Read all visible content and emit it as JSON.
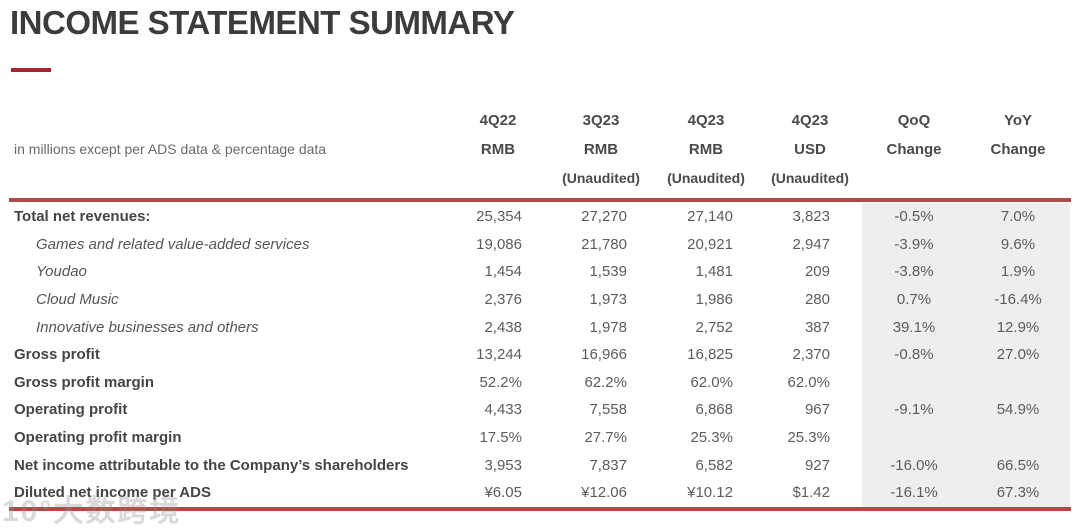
{
  "page": {
    "title": "INCOME STATEMENT SUMMARY"
  },
  "colors": {
    "title_underline": "#A8232E",
    "table_border": "#AF4A44",
    "band_background": "#EEEEEE"
  },
  "table": {
    "note": "in millions except per ADS data & percentage data",
    "columns": [
      {
        "period": "4Q22",
        "unit": "RMB",
        "audit": ""
      },
      {
        "period": "3Q23",
        "unit": "RMB",
        "audit": "(Unaudited)"
      },
      {
        "period": "4Q23",
        "unit": "RMB",
        "audit": "(Unaudited)"
      },
      {
        "period": "4Q23",
        "unit": "USD",
        "audit": "(Unaudited)"
      },
      {
        "period": "QoQ",
        "unit": "Change",
        "audit": ""
      },
      {
        "period": "YoY",
        "unit": "Change",
        "audit": ""
      }
    ],
    "rows": [
      {
        "label": "Total net revenues:",
        "style": "bold",
        "values": [
          "25,354",
          "27,270",
          "27,140",
          "3,823",
          "-0.5%",
          "7.0%"
        ]
      },
      {
        "label": "Games and related value-added services",
        "style": "italic",
        "values": [
          "19,086",
          "21,780",
          "20,921",
          "2,947",
          "-3.9%",
          "9.6%"
        ]
      },
      {
        "label": "Youdao",
        "style": "italic",
        "values": [
          "1,454",
          "1,539",
          "1,481",
          "209",
          "-3.8%",
          "1.9%"
        ]
      },
      {
        "label": "Cloud Music",
        "style": "italic",
        "values": [
          "2,376",
          "1,973",
          "1,986",
          "280",
          "0.7%",
          "-16.4%"
        ]
      },
      {
        "label": "Innovative businesses and others",
        "style": "italic",
        "values": [
          "2,438",
          "1,978",
          "2,752",
          "387",
          "39.1%",
          "12.9%"
        ]
      },
      {
        "label": "Gross profit",
        "style": "bold",
        "values": [
          "13,244",
          "16,966",
          "16,825",
          "2,370",
          "-0.8%",
          "27.0%"
        ]
      },
      {
        "label": "Gross profit margin",
        "style": "bold",
        "values": [
          "52.2%",
          "62.2%",
          "62.0%",
          "62.0%",
          "",
          ""
        ]
      },
      {
        "label": "Operating profit",
        "style": "bold",
        "values": [
          "4,433",
          "7,558",
          "6,868",
          "967",
          "-9.1%",
          "54.9%"
        ]
      },
      {
        "label": "Operating profit margin",
        "style": "bold",
        "values": [
          "17.5%",
          "27.7%",
          "25.3%",
          "25.3%",
          "",
          ""
        ]
      },
      {
        "label": "Net income attributable to the Company’s shareholders",
        "style": "bold",
        "values": [
          "3,953",
          "7,837",
          "6,582",
          "927",
          "-16.0%",
          "66.5%"
        ]
      },
      {
        "label": "Diluted net income per ADS",
        "style": "bold",
        "values": [
          "¥6.05",
          "¥12.06",
          "¥10.12",
          "$1.42",
          "-16.1%",
          "67.3%"
        ]
      }
    ]
  },
  "watermark": "10°大数跨境"
}
